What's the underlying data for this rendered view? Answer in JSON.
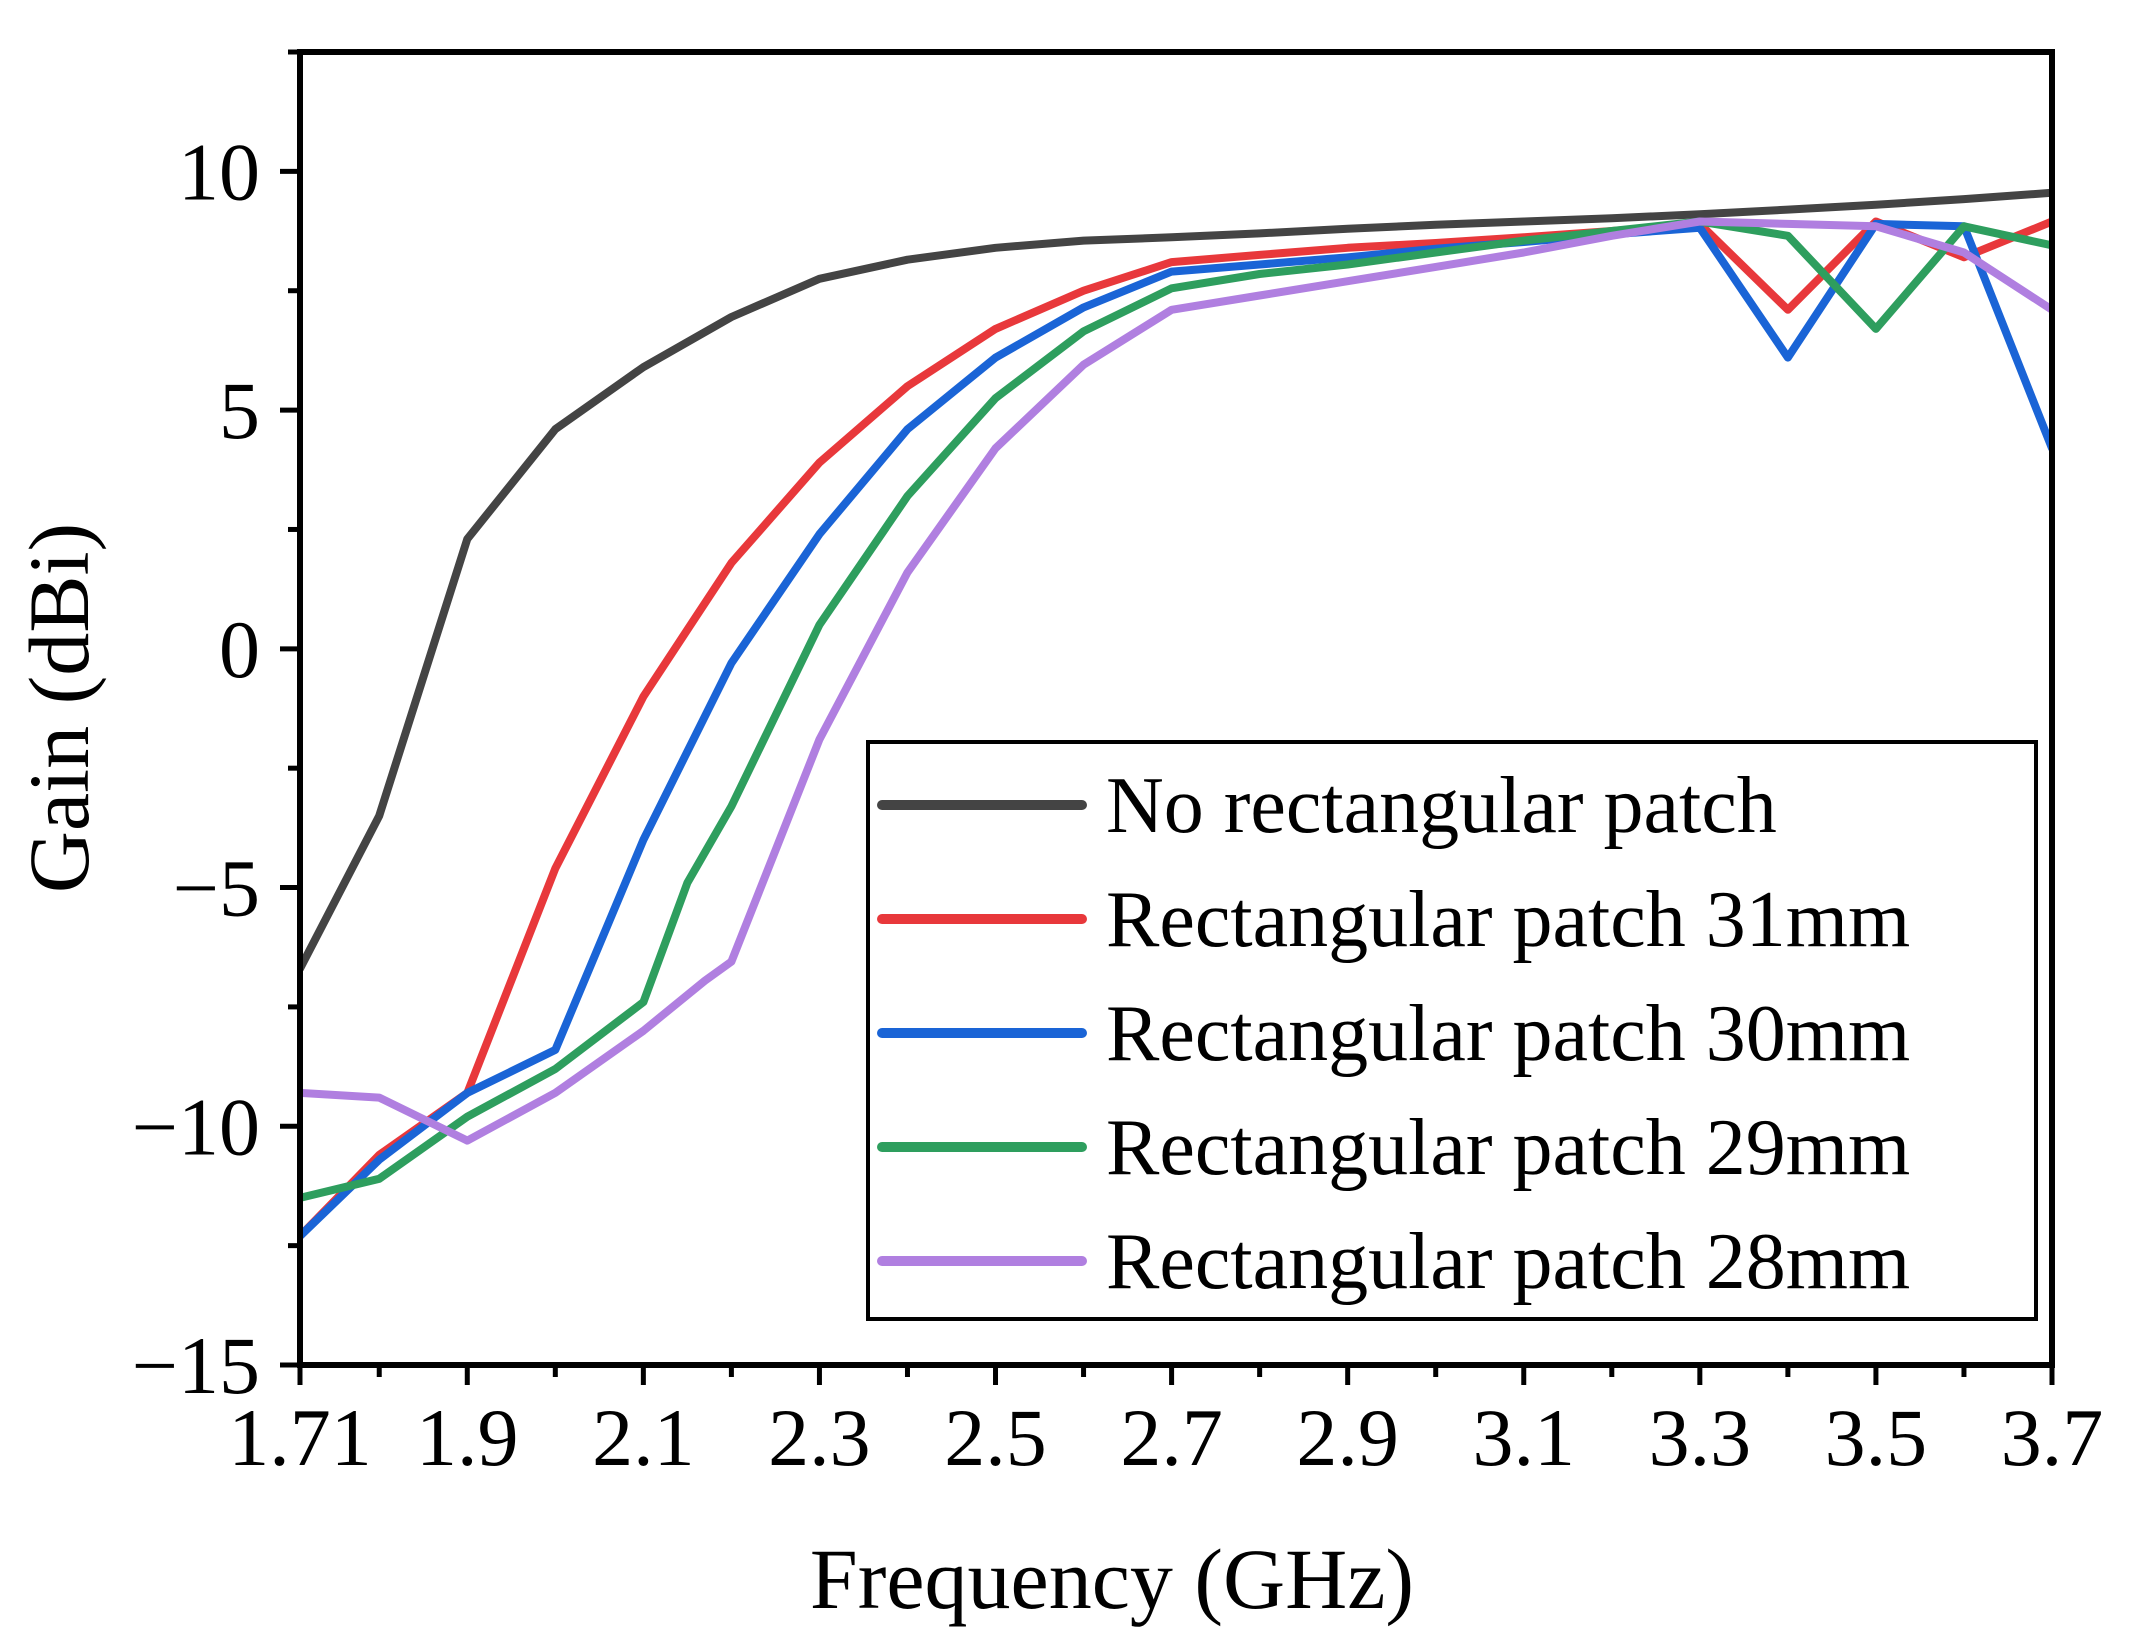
{
  "chart_data": {
    "type": "line",
    "xlabel": "Frequency (GHz)",
    "ylabel": "Gain (dBi)",
    "xlim": [
      1.71,
      3.7
    ],
    "ylim": [
      -15,
      12.5
    ],
    "x_ticks": [
      1.71,
      1.9,
      2.1,
      2.3,
      2.5,
      2.7,
      2.9,
      3.1,
      3.3,
      3.5,
      3.7
    ],
    "x_tick_labels": [
      "1.71",
      "1.9",
      "2.1",
      "2.3",
      "2.5",
      "2.7",
      "2.9",
      "3.1",
      "3.3",
      "3.5",
      "3.7"
    ],
    "x_minor_ticks": [
      1.8,
      2.0,
      2.2,
      2.4,
      2.6,
      2.8,
      3.0,
      3.2,
      3.4,
      3.6
    ],
    "y_ticks": [
      10,
      5,
      0,
      -5,
      -10,
      -15
    ],
    "y_tick_labels": [
      "10",
      "5",
      "0",
      "−5",
      "−10",
      "−15"
    ],
    "y_minor_ticks": [
      12.5,
      7.5,
      2.5,
      -2.5,
      -7.5,
      -12.5
    ],
    "legend_position": "bottom-right",
    "x": [
      1.71,
      1.8,
      1.9,
      2.0,
      2.1,
      2.2,
      2.3,
      2.4,
      2.5,
      2.6,
      2.7,
      2.8,
      2.9,
      3.0,
      3.1,
      3.2,
      3.3,
      3.4,
      3.5,
      3.6,
      3.7
    ],
    "series": [
      {
        "name": "No rectangular patch",
        "color": "#444444",
        "x": [
          1.71,
          1.8,
          1.9,
          2.0,
          2.1,
          2.2,
          2.3,
          2.4,
          2.5,
          2.6,
          2.7,
          2.8,
          2.9,
          3.0,
          3.1,
          3.2,
          3.3,
          3.4,
          3.5,
          3.6,
          3.7
        ],
        "values": [
          -6.7,
          -3.5,
          2.3,
          4.6,
          5.9,
          6.95,
          7.75,
          8.15,
          8.4,
          8.55,
          8.62,
          8.7,
          8.8,
          8.88,
          8.95,
          9.02,
          9.1,
          9.2,
          9.3,
          9.42,
          9.55
        ]
      },
      {
        "name": "Rectangular patch 31mm",
        "color": "#e8383b",
        "x": [
          1.71,
          1.8,
          1.9,
          2.0,
          2.1,
          2.15,
          2.2,
          2.3,
          2.4,
          2.5,
          2.6,
          2.7,
          2.8,
          2.9,
          3.0,
          3.1,
          3.2,
          3.3,
          3.4,
          3.5,
          3.6,
          3.7
        ],
        "values": [
          -12.3,
          -10.6,
          -9.3,
          -4.6,
          -1.0,
          0.4,
          1.8,
          3.9,
          5.5,
          6.7,
          7.5,
          8.1,
          8.25,
          8.4,
          8.5,
          8.62,
          8.75,
          8.9,
          7.1,
          8.95,
          8.2,
          8.95
        ]
      },
      {
        "name": "Rectangular patch 30mm",
        "color": "#1a64d6",
        "x": [
          1.71,
          1.8,
          1.9,
          2.0,
          2.1,
          2.2,
          2.3,
          2.4,
          2.5,
          2.6,
          2.7,
          2.8,
          2.9,
          3.0,
          3.1,
          3.2,
          3.3,
          3.4,
          3.5,
          3.6,
          3.7
        ],
        "values": [
          -12.3,
          -10.7,
          -9.3,
          -8.4,
          -4.0,
          -0.3,
          2.4,
          4.6,
          6.1,
          7.15,
          7.9,
          8.05,
          8.2,
          8.38,
          8.52,
          8.68,
          8.82,
          6.1,
          8.9,
          8.85,
          4.2
        ]
      },
      {
        "name": "Rectangular patch 29mm",
        "color": "#2e9e5e",
        "x": [
          1.71,
          1.8,
          1.9,
          2.0,
          2.1,
          2.15,
          2.2,
          2.3,
          2.4,
          2.5,
          2.6,
          2.7,
          2.8,
          2.9,
          3.0,
          3.1,
          3.2,
          3.3,
          3.4,
          3.5,
          3.6,
          3.7
        ],
        "values": [
          -11.5,
          -11.1,
          -9.8,
          -8.8,
          -7.4,
          -4.9,
          -3.3,
          0.5,
          3.2,
          5.25,
          6.65,
          7.55,
          7.85,
          8.05,
          8.3,
          8.55,
          8.75,
          8.95,
          8.65,
          6.7,
          8.85,
          8.45
        ]
      },
      {
        "name": "Rectangular patch 28mm",
        "color": "#b07fe0",
        "x": [
          1.71,
          1.8,
          1.9,
          2.0,
          2.1,
          2.17,
          2.2,
          2.3,
          2.4,
          2.5,
          2.6,
          2.7,
          2.8,
          2.9,
          3.0,
          3.1,
          3.2,
          3.3,
          3.4,
          3.5,
          3.6,
          3.7
        ],
        "values": [
          -9.3,
          -9.4,
          -10.3,
          -9.3,
          -8.0,
          -6.95,
          -6.55,
          -1.9,
          1.6,
          4.2,
          5.95,
          7.1,
          7.4,
          7.7,
          8.0,
          8.3,
          8.65,
          8.95,
          8.9,
          8.85,
          8.3,
          7.1
        ]
      }
    ]
  }
}
